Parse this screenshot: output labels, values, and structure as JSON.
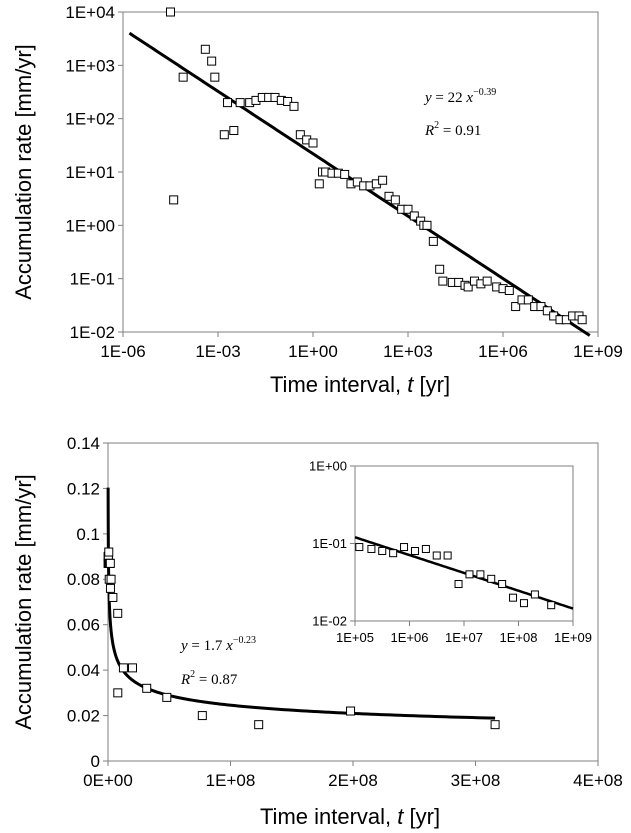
{
  "chart_data": [
    {
      "type": "scatter",
      "xscale": "log",
      "yscale": "log",
      "xlabel": "Time interval, t [yr]",
      "xlabel_pre": "Time interval, ",
      "xlabel_var": "t",
      "xlabel_post": " [yr]",
      "ylabel": "Accumulation rate [mm/yr]",
      "xlim": [
        1e-06,
        1000000000.0
      ],
      "ylim": [
        0.01,
        10000
      ],
      "xticks": [
        "1E-06",
        "1E-03",
        "1E+00",
        "1E+03",
        "1E+06",
        "1E+09"
      ],
      "yticks": [
        "1E-02",
        "1E-01",
        "1E+00",
        "1E+01",
        "1E+02",
        "1E+03",
        "1E+04"
      ],
      "grid": false,
      "equation_lhs": "y",
      "equation_eq": " = 22 ",
      "equation_var": "x",
      "equation_exp": "−0.39",
      "r2_label": "R",
      "r2_sup": "2",
      "r2_value": " = 0.91",
      "fit": {
        "coef": 22,
        "exp": -0.39
      },
      "points": [
        [
          3.16e-05,
          10000
        ],
        [
          3.98e-05,
          3
        ],
        [
          7.94e-05,
          600
        ],
        [
          0.000398,
          2000
        ],
        [
          0.000631,
          1200
        ],
        [
          0.000794,
          600
        ],
        [
          0.00158,
          50
        ],
        [
          0.002,
          200
        ],
        [
          0.00316,
          60
        ],
        [
          0.00501,
          200
        ],
        [
          0.01,
          200
        ],
        [
          0.0158,
          220
        ],
        [
          0.0251,
          250
        ],
        [
          0.0398,
          250
        ],
        [
          0.0631,
          250
        ],
        [
          0.1,
          220
        ],
        [
          0.158,
          210
        ],
        [
          0.251,
          170
        ],
        [
          0.398,
          50
        ],
        [
          0.631,
          40
        ],
        [
          1,
          35
        ],
        [
          1.58,
          6
        ],
        [
          2,
          10
        ],
        [
          2.51,
          10
        ],
        [
          3.98,
          9.5
        ],
        [
          6.31,
          9.5
        ],
        [
          10,
          9
        ],
        [
          15.8,
          6
        ],
        [
          25.1,
          6.5
        ],
        [
          39.8,
          5.5
        ],
        [
          63.1,
          5.5
        ],
        [
          100,
          6
        ],
        [
          158,
          7
        ],
        [
          251,
          3.5
        ],
        [
          398,
          3
        ],
        [
          631,
          2
        ],
        [
          1000,
          2
        ],
        [
          1580,
          1.5
        ],
        [
          2510,
          1.2
        ],
        [
          3160,
          1
        ],
        [
          3980,
          1
        ],
        [
          6310,
          0.5
        ],
        [
          10000,
          0.15
        ],
        [
          12600,
          0.09
        ],
        [
          25100,
          0.085
        ],
        [
          39800,
          0.085
        ],
        [
          63100,
          0.075
        ],
        [
          79400,
          0.07
        ],
        [
          126000,
          0.09
        ],
        [
          200000,
          0.08
        ],
        [
          316000,
          0.09
        ],
        [
          631000,
          0.07
        ],
        [
          1000000,
          0.065
        ],
        [
          1580000,
          0.06
        ],
        [
          2510000,
          0.03
        ],
        [
          3980000,
          0.04
        ],
        [
          6310000,
          0.04
        ],
        [
          10000000,
          0.03
        ],
        [
          15800000,
          0.03
        ],
        [
          25100000,
          0.025
        ],
        [
          39800000,
          0.02
        ],
        [
          63100000,
          0.017
        ],
        [
          100000000,
          0.017
        ],
        [
          158000000,
          0.02
        ],
        [
          251000000,
          0.02
        ],
        [
          316000000,
          0.017
        ]
      ]
    },
    {
      "type": "scatter",
      "xscale": "linear",
      "yscale": "linear",
      "xlabel": "Time interval, t [yr]",
      "xlabel_pre": "Time interval, ",
      "xlabel_var": "t",
      "xlabel_post": " [yr]",
      "ylabel": "Accumulation rate [mm/yr]",
      "xlim": [
        0,
        400000000
      ],
      "ylim": [
        0,
        0.14
      ],
      "xticks": [
        "0E+00",
        "1E+08",
        "2E+08",
        "3E+08",
        "4E+08"
      ],
      "yticks": [
        "0",
        "0.02",
        "0.04",
        "0.06",
        "0.08",
        "0.1",
        "0.12",
        "0.14"
      ],
      "grid": false,
      "equation_lhs": "y",
      "equation_eq": " = 1.7 ",
      "equation_var": "x",
      "equation_exp": "−0.23",
      "r2_label": "R",
      "r2_sup": "2",
      "r2_value": " = 0.87",
      "fit": {
        "coef": 1.7,
        "exp": -0.23
      },
      "points": [
        [
          100000,
          0.09
        ],
        [
          126000,
          0.087
        ],
        [
          200000,
          0.087
        ],
        [
          316000,
          0.09
        ],
        [
          398000,
          0.087
        ],
        [
          631000,
          0.092
        ],
        [
          1000000,
          0.08
        ],
        [
          1260000,
          0.087
        ],
        [
          1580000,
          0.087
        ],
        [
          1900000,
          0.087
        ],
        [
          2000000,
          0.076
        ],
        [
          2500000,
          0.08
        ],
        [
          3980000,
          0.072
        ],
        [
          7940000,
          0.065
        ],
        [
          8000000,
          0.03
        ],
        [
          12600000,
          0.041
        ],
        [
          20000000,
          0.041
        ],
        [
          31600000,
          0.032
        ],
        [
          48000000,
          0.028
        ],
        [
          77000000,
          0.02
        ],
        [
          123000000,
          0.016
        ],
        [
          198000000,
          0.022
        ],
        [
          316000000,
          0.016
        ]
      ],
      "inset": {
        "type": "scatter",
        "xscale": "log",
        "yscale": "log",
        "xlim": [
          100000,
          1000000000
        ],
        "ylim": [
          0.01,
          1
        ],
        "xticks": [
          "1E+05",
          "1E+06",
          "1E+07",
          "1E+08",
          "1E+09"
        ],
        "yticks": [
          "1E-02",
          "1E-01",
          "1E+00"
        ],
        "points": [
          [
            120000,
            0.09
          ],
          [
            200000,
            0.085
          ],
          [
            316000,
            0.08
          ],
          [
            501000,
            0.075
          ],
          [
            794000,
            0.09
          ],
          [
            1260000,
            0.08
          ],
          [
            2000000,
            0.085
          ],
          [
            3160000,
            0.07
          ],
          [
            5010000,
            0.07
          ],
          [
            7940000,
            0.03
          ],
          [
            12600000,
            0.04
          ],
          [
            20000000,
            0.04
          ],
          [
            31600000,
            0.035
          ],
          [
            50100000,
            0.03
          ],
          [
            79400000,
            0.02
          ],
          [
            126000000,
            0.017
          ],
          [
            200000000,
            0.022
          ],
          [
            398000000,
            0.016
          ]
        ]
      }
    }
  ]
}
